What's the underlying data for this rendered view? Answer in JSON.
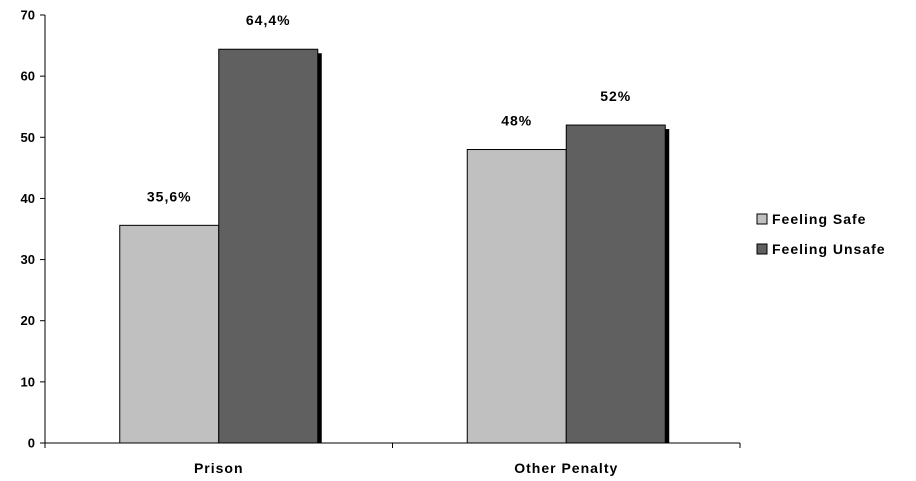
{
  "chart_data": {
    "type": "bar",
    "categories": [
      "Prison",
      "Other Penalty"
    ],
    "series": [
      {
        "name": "Feeling Safe",
        "values": [
          35.6,
          48
        ],
        "labels": [
          "35,6%",
          "48%"
        ],
        "color": "#c0c0c0"
      },
      {
        "name": "Feeling Unsafe",
        "values": [
          64.4,
          52
        ],
        "labels": [
          "64,4%",
          "52%"
        ],
        "color": "#606060"
      }
    ],
    "ylim": [
      0,
      70
    ],
    "yticks": [
      0,
      10,
      20,
      30,
      40,
      50,
      60,
      70
    ],
    "grid": false,
    "legend": "right"
  }
}
